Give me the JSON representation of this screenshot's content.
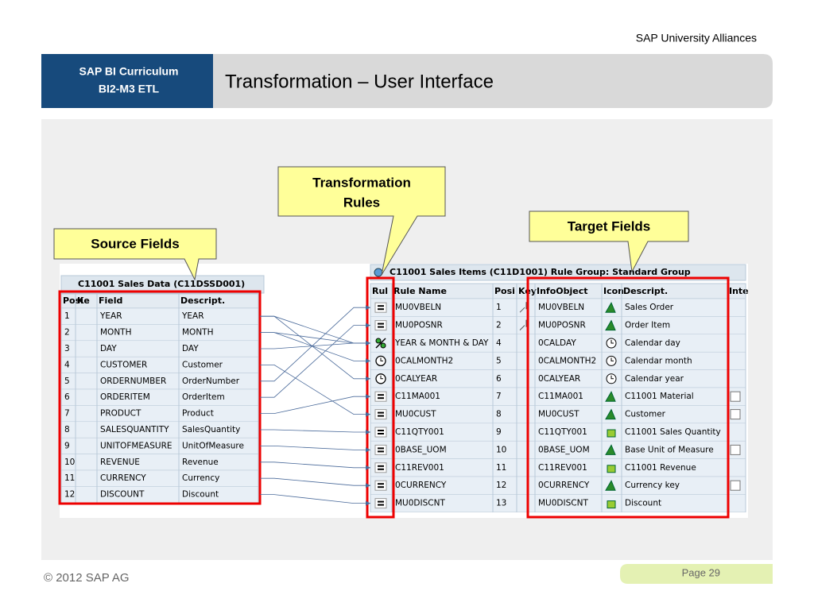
{
  "header": {
    "org": "SAP University Alliances",
    "course": [
      "SAP BI Curriculum",
      "BI2-M3 ETL"
    ],
    "title": "Transformation – User Interface"
  },
  "callouts": {
    "source": "Source Fields",
    "rules": [
      "Transformation",
      "Rules"
    ],
    "target": "Target Fields"
  },
  "source_table": {
    "title": "C11001 Sales Data (C11DSSD001)",
    "columns": [
      "Posi",
      "Ke",
      "Field",
      "Descript."
    ],
    "rows": [
      [
        "1",
        "YEAR",
        "YEAR"
      ],
      [
        "2",
        "MONTH",
        "MONTH"
      ],
      [
        "3",
        "DAY",
        "DAY"
      ],
      [
        "4",
        "CUSTOMER",
        "Customer"
      ],
      [
        "5",
        "ORDERNUMBER",
        "OrderNumber"
      ],
      [
        "6",
        "ORDERITEM",
        "OrderItem"
      ],
      [
        "7",
        "PRODUCT",
        "Product"
      ],
      [
        "8",
        "SALESQUANTITY",
        "SalesQuantity"
      ],
      [
        "9",
        "UNITOFMEASURE",
        "UnitOfMeasure"
      ],
      [
        "10",
        "REVENUE",
        "Revenue"
      ],
      [
        "11",
        "CURRENCY",
        "Currency"
      ],
      [
        "12",
        "DISCOUNT",
        "Discount"
      ]
    ]
  },
  "target_table": {
    "title": "C11001 Sales Items (C11D1001) Rule Group: Standard Group",
    "columns": [
      "Rul",
      "Rule Name",
      "Posi",
      "Key",
      "InfoObject",
      "Icon",
      "Descript.",
      "Inte"
    ],
    "rows": [
      [
        "MU0VBELN",
        "1",
        "MU0VBELN",
        "Sales Order"
      ],
      [
        "MU0POSNR",
        "2",
        "MU0POSNR",
        "Order Item"
      ],
      [
        "YEAR & MONTH & DAY",
        "4",
        "0CALDAY",
        "Calendar day"
      ],
      [
        "0CALMONTH2",
        "5",
        "0CALMONTH2",
        "Calendar month"
      ],
      [
        "0CALYEAR",
        "6",
        "0CALYEAR",
        "Calendar year"
      ],
      [
        "C11MA001",
        "7",
        "C11MA001",
        "C11001 Material"
      ],
      [
        "MU0CUST",
        "8",
        "MU0CUST",
        "Customer"
      ],
      [
        "C11QTY001",
        "9",
        "C11QTY001",
        "C11001 Sales Quantity"
      ],
      [
        "0BASE_UOM",
        "10",
        "0BASE_UOM",
        "Base Unit of Measure"
      ],
      [
        "C11REV001",
        "11",
        "C11REV001",
        "C11001 Revenue"
      ],
      [
        "0CURRENCY",
        "12",
        "0CURRENCY",
        "Currency key"
      ],
      [
        "MU0DISCNT",
        "13",
        "MU0DISCNT",
        "Discount"
      ]
    ]
  },
  "footer": {
    "copyright": "© 2012 SAP AG",
    "page": "Page 29"
  }
}
